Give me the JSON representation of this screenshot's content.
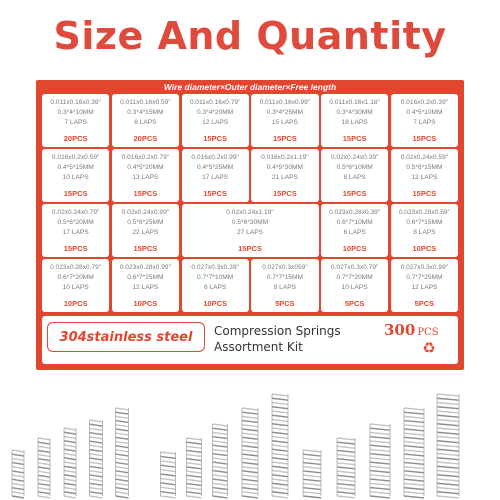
{
  "headline": "Size And Quantity",
  "header_label": "Wire diameter×Outer diameter×Free length",
  "cells": [
    {
      "inch": "0.011x0.16x0.39\"",
      "mm": "0.3*4*10MM",
      "laps": "7 LAPS",
      "pcs": "20PCS"
    },
    {
      "inch": "0.011x0.16x0.59\"",
      "mm": "0.3*4*15MM",
      "laps": "8 LAPS",
      "pcs": "20PCS"
    },
    {
      "inch": "0.011x0.16x0.79\"",
      "mm": "0.3*4*20MM",
      "laps": "12 LAPS",
      "pcs": "15PCS"
    },
    {
      "inch": "0.011x0.16x0.99\"",
      "mm": "0.3*4*25MM",
      "laps": "15 LAPS",
      "pcs": "15PCS"
    },
    {
      "inch": "0.011x0.16x1.18\"",
      "mm": "0.3*4*30MM",
      "laps": "18 LAPS",
      "pcs": "15PCS"
    },
    {
      "inch": "0.016x0.2x0.39\"",
      "mm": "0.4*5*10MM",
      "laps": "7 LAPS",
      "pcs": "15PCS"
    },
    {
      "inch": "0.016x0.2x0.59\"",
      "mm": "0.4*5*15MM",
      "laps": "10 LAPS",
      "pcs": "15PCS"
    },
    {
      "inch": "0.016x0.2x0.79\"",
      "mm": "0.4*5*20MM",
      "laps": "13 LAPS",
      "pcs": "15PCS"
    },
    {
      "inch": "0.016x0.2x0.99\"",
      "mm": "0.4*5*25MM",
      "laps": "17 LAPS",
      "pcs": "15PCS"
    },
    {
      "inch": "0.016x0.2x1.19\"",
      "mm": "0.4*5*30MM",
      "laps": "21 LAPS",
      "pcs": "15PCS"
    },
    {
      "inch": "0.02x0.24x0.39\"",
      "mm": "0.5*6*10MM",
      "laps": "8 LAPS",
      "pcs": "15PCS"
    },
    {
      "inch": "0.02x0.24x0.59\"",
      "mm": "0.5*6*15MM",
      "laps": "12 LAPS",
      "pcs": "15PCS"
    },
    {
      "inch": "0.02x0.24x0.79\"",
      "mm": "0.5*6*20MM",
      "laps": "17 LAPS",
      "pcs": "15PCS"
    },
    {
      "inch": "0.02x0.24x0.99\"",
      "mm": "0.5*6*25MM",
      "laps": "22 LAPS",
      "pcs": "15PCS"
    },
    {
      "inch": "0.02x0.24x1.19\"",
      "mm": "0.5*6*30MM",
      "laps": "27 LAPS",
      "pcs": "15PCS",
      "wide": true
    },
    {
      "inch": "0.023x0.28x0.39\"",
      "mm": "0.6*7*10MM",
      "laps": "6 LAPS",
      "pcs": "10PCS"
    },
    {
      "inch": "0.023x0.28x0.59\"",
      "mm": "0.6*7*15MM",
      "laps": "8 LAPS",
      "pcs": "10PCS"
    },
    {
      "inch": "0.023x0.28x0.79\"",
      "mm": "0.6*7*20MM",
      "laps": "10 LAPS",
      "pcs": "10PCS"
    },
    {
      "inch": "0.023x0.28x0.99\"",
      "mm": "0.6*7*25MM",
      "laps": "12 LAPS",
      "pcs": "10PCS"
    },
    {
      "inch": "0.027x0.3x0.39\"",
      "mm": "0.7*7*10MM",
      "laps": "6 LAPS",
      "pcs": "10PCS"
    },
    {
      "inch": "0.027x0.3x059\"",
      "mm": "0.7*7*15MM",
      "laps": "8 LAPS",
      "pcs": "5PCS"
    },
    {
      "inch": "0.027x0.3x0.79\"",
      "mm": "0.7*7*20MM",
      "laps": "10 LAPS",
      "pcs": "5PCS"
    },
    {
      "inch": "0.027x0.3x0.99\"",
      "mm": "0.7*7*25MM",
      "laps": "12 LAPS",
      "pcs": "5PCS"
    }
  ],
  "material": "304stainless steel",
  "kit_title_line1": "Compression Springs",
  "kit_title_line2": "Assortment Kit",
  "total_count": "300",
  "total_unit": "PCS",
  "recycle_icon": "recycle-icon",
  "colors": {
    "accent": "#e1472f",
    "headline": "#de4b3c"
  }
}
